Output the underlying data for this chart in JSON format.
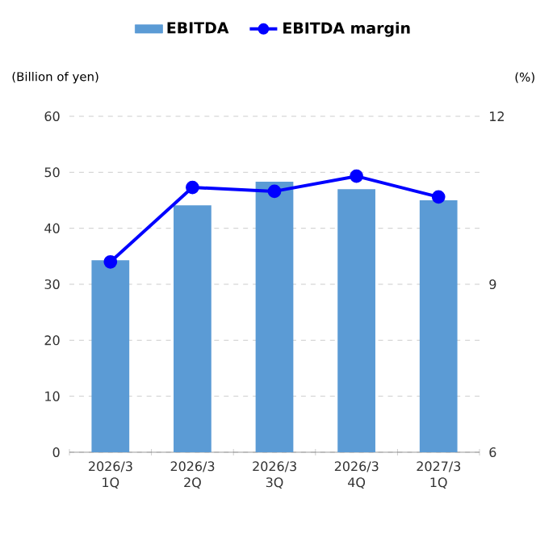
{
  "chart_data": {
    "type": "bar",
    "categories": [
      "2026/3 1Q",
      "2026/3 2Q",
      "2026/3 3Q",
      "2026/3 4Q",
      "2027/3 1Q"
    ],
    "series": [
      {
        "name": "EBITDA",
        "color": "#5b9bd5",
        "values": [
          34.3,
          44.1,
          48.3,
          47.0,
          45.0
        ]
      },
      {
        "name": "EBITDA margin",
        "type": "line",
        "axis": "y2",
        "color": "#0000ff",
        "values": [
          9.4,
          10.73,
          10.66,
          10.93,
          10.56
        ]
      }
    ],
    "ylabel": "(Billion of yen)",
    "y2label": "(%)",
    "ylim": [
      0,
      60
    ],
    "yticks": [
      0,
      10,
      20,
      30,
      40,
      50,
      60
    ],
    "y2lim": [
      6,
      12
    ],
    "y2ticks": [
      6,
      9,
      12
    ],
    "grid": "y",
    "legend": "top",
    "marker": "circle"
  }
}
